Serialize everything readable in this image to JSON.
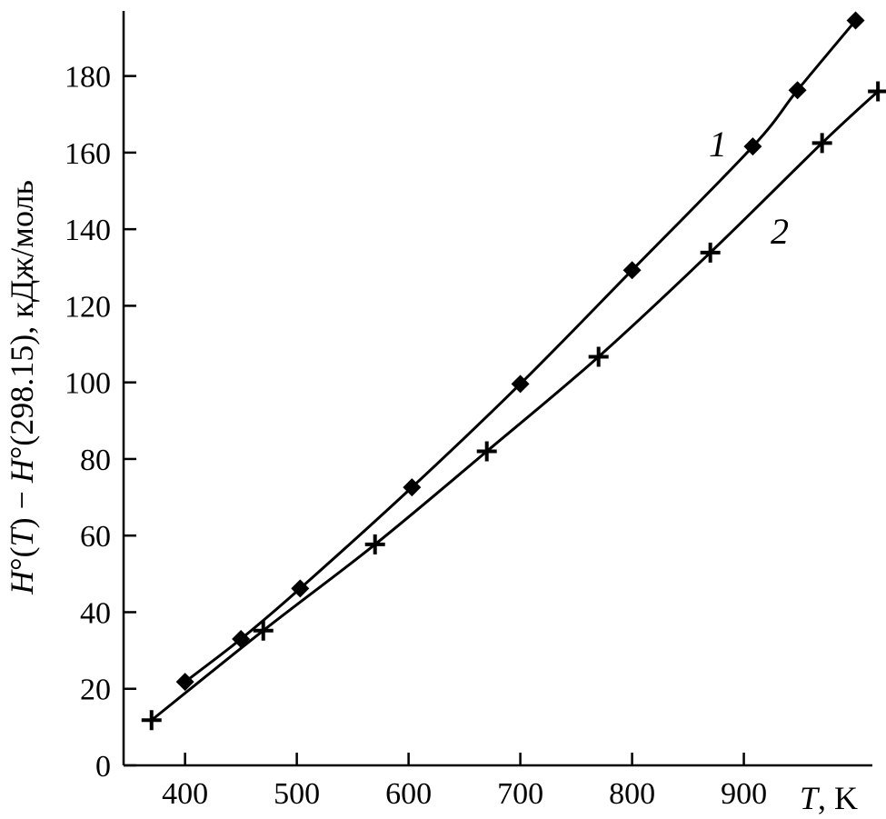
{
  "chart_data": {
    "type": "line",
    "title": "",
    "xlabel": "T, K",
    "xlabel_italic_part": "T",
    "xlabel_unit": ", K",
    "ylabel": "H°(T) − H°(298.15), кДж/моль",
    "ylabel_parts": [
      "H",
      "°(",
      "T",
      ") − ",
      "H",
      "°(298.15), кДж/моль"
    ],
    "xlim": [
      345,
      1015
    ],
    "ylim": [
      0,
      197
    ],
    "xticks": [
      400,
      500,
      600,
      700,
      800,
      900
    ],
    "yticks": [
      0,
      20,
      40,
      60,
      80,
      100,
      120,
      140,
      160,
      180
    ],
    "grid": false,
    "legend": "none",
    "colors": {
      "line": "#000000",
      "background": "#ffffff"
    },
    "series": [
      {
        "name": "1",
        "marker": "diamond",
        "x": [
          400,
          450,
          503,
          603,
          700,
          800,
          908,
          948,
          1000
        ],
        "y": [
          21.8,
          33,
          46.2,
          72.6,
          99.6,
          129.3,
          161.6,
          176.3,
          194.5
        ]
      },
      {
        "name": "2",
        "marker": "plus",
        "x": [
          370,
          470,
          570,
          670,
          770,
          870,
          970,
          1020
        ],
        "y": [
          11.8,
          35.2,
          57.7,
          82,
          106.7,
          133.9,
          162.5,
          176
        ]
      }
    ]
  }
}
